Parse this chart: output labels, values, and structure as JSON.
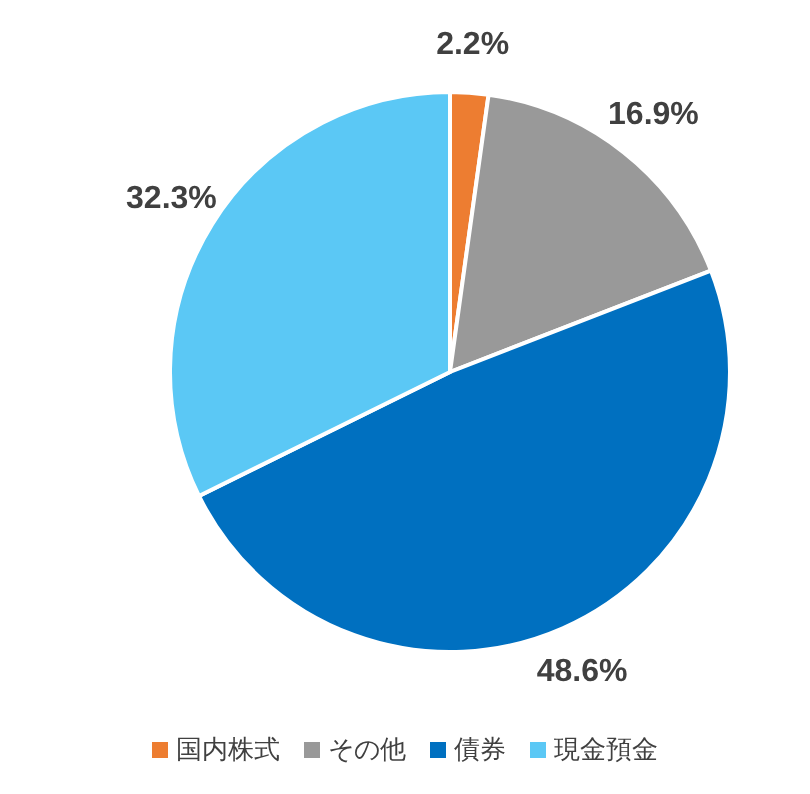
{
  "chart_data": {
    "type": "pie",
    "categories": [
      "国内株式",
      "その他",
      "債券",
      "現金預金"
    ],
    "values": [
      2.2,
      16.9,
      48.6,
      32.3
    ],
    "colors": [
      "#ed7d31",
      "#999999",
      "#0070c0",
      "#5bc8f5"
    ],
    "value_labels": [
      "2.2%",
      "16.9%",
      "48.6%",
      "32.3%"
    ],
    "legend": "bottom"
  }
}
